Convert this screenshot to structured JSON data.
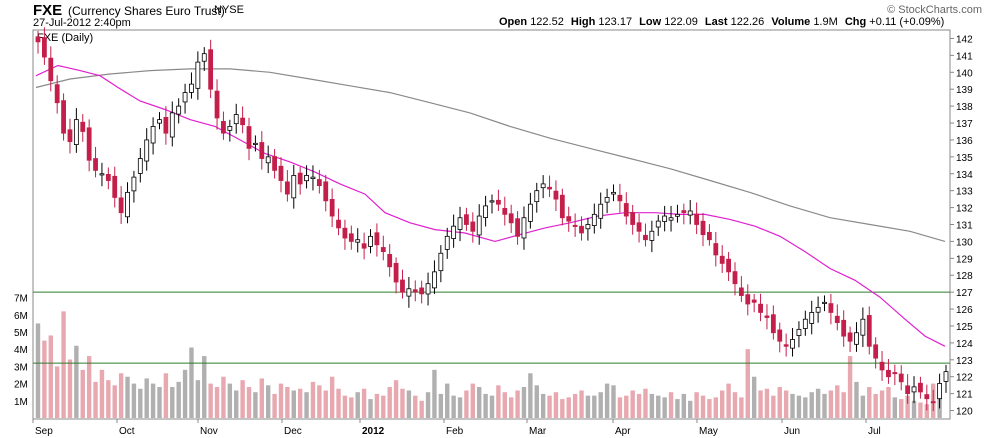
{
  "header": {
    "symbol": "FXE",
    "name": "(Currency Shares Euro Trust)",
    "exchange": "NYSE",
    "timestamp": "27-Jul-2012 2:40pm",
    "brand": "© StockCharts.com",
    "open_label": "Open",
    "open": "122.52",
    "high_label": "High",
    "high": "123.17",
    "low_label": "Low",
    "low": "122.09",
    "last_label": "Last",
    "last": "122.26",
    "volume_label": "Volume",
    "volume": "1.9M",
    "chg_label": "Chg",
    "chg": "+0.11 (+0.09%)"
  },
  "chart_data": {
    "type": "candlestick",
    "title": "FXE (Daily)",
    "ylim": [
      119.5,
      142.5
    ],
    "y_ticks": [
      120,
      121,
      122,
      123,
      124,
      125,
      126,
      127,
      128,
      129,
      130,
      131,
      132,
      133,
      134,
      135,
      136,
      137,
      138,
      139,
      140,
      141,
      142
    ],
    "volume_ticks": [
      "1M",
      "2M",
      "3M",
      "4M",
      "5M",
      "6M",
      "7M"
    ],
    "x_labels": [
      "Sep",
      "Oct",
      "Nov",
      "Dec",
      "2012",
      "Feb",
      "Mar",
      "Apr",
      "May",
      "Jun",
      "Jul"
    ],
    "horizontal_lines": [
      {
        "value": 127,
        "color": "#2e7d2e"
      },
      {
        "value": 122.8,
        "color": "#2e7d2e"
      }
    ],
    "closes": [
      141.8,
      140.9,
      139.5,
      138.2,
      136.4,
      135.9,
      137.2,
      136.5,
      134.8,
      134.2,
      134.0,
      133.6,
      132.6,
      131.7,
      132.9,
      133.8,
      134.9,
      136.0,
      136.8,
      137.2,
      136.4,
      137.6,
      138.0,
      138.8,
      139.3,
      140.6,
      141.1,
      139.0,
      137.3,
      136.4,
      136.8,
      137.5,
      136.9,
      135.5,
      135.8,
      134.9,
      135.0,
      134.2,
      133.6,
      132.8,
      133.9,
      133.4,
      133.9,
      133.8,
      133.3,
      132.4,
      131.5,
      130.8,
      130.2,
      130.0,
      130.1,
      129.6,
      130.3,
      129.8,
      129.4,
      128.5,
      127.6,
      127.0,
      127.2,
      127.0,
      126.9,
      127.5,
      128.2,
      129.3,
      130.3,
      130.9,
      131.4,
      131.0,
      130.6,
      131.5,
      132.1,
      132.4,
      132.2,
      131.6,
      131.1,
      130.3,
      131.4,
      132.2,
      133.0,
      133.4,
      133.1,
      132.5,
      131.4,
      131.2,
      130.9,
      130.5,
      131.0,
      131.6,
      132.2,
      132.6,
      132.9,
      132.4,
      131.5,
      131.0,
      130.6,
      130.1,
      130.6,
      131.2,
      131.5,
      131.4,
      131.6,
      131.7,
      131.8,
      131.0,
      130.4,
      130.1,
      129.2,
      128.7,
      128.2,
      127.5,
      126.8,
      126.3,
      126.4,
      125.8,
      125.5,
      124.6,
      124.1,
      123.8,
      124.2,
      124.8,
      125.4,
      125.8,
      126.1,
      126.4,
      125.8,
      125.2,
      124.4,
      124.1,
      124.6,
      125.4,
      123.8,
      123.1,
      122.4,
      122.0,
      122.2,
      121.7,
      121.0,
      121.4,
      121.1,
      120.7,
      120.5,
      121.6,
      122.3
    ],
    "volumes": [
      5.5,
      4.5,
      4.8,
      3.0,
      6.2,
      3.4,
      4.2,
      2.8,
      3.6,
      2.1,
      2.8,
      2.2,
      1.9,
      2.6,
      2.4,
      2.0,
      1.7,
      2.3,
      2.0,
      1.8,
      2.6,
      1.8,
      2.1,
      2.8,
      4.1,
      2.2,
      3.6,
      2.0,
      1.8,
      2.4,
      2.0,
      1.6,
      2.2,
      1.8,
      1.5,
      2.3,
      1.9,
      1.4,
      2.0,
      1.8,
      1.6,
      1.7,
      1.5,
      2.1,
      1.9,
      1.6,
      2.4,
      1.7,
      1.3,
      1.2,
      1.5,
      1.7,
      1.1,
      1.4,
      1.3,
      1.8,
      2.2,
      1.7,
      1.6,
      1.3,
      1.0,
      1.5,
      2.8,
      1.4,
      2.0,
      1.3,
      1.2,
      1.6,
      2.0,
      1.8,
      1.4,
      1.3,
      1.9,
      1.5,
      1.2,
      1.6,
      1.8,
      2.6,
      1.9,
      1.4,
      1.3,
      1.5,
      1.1,
      1.2,
      1.4,
      1.6,
      1.3,
      1.3,
      1.5,
      2.0,
      1.9,
      1.2,
      1.3,
      1.6,
      1.4,
      1.7,
      1.4,
      1.3,
      1.2,
      1.5,
      1.1,
      1.4,
      1.0,
      1.5,
      1.3,
      1.1,
      1.2,
      1.6,
      2.0,
      1.5,
      1.2,
      4.0,
      2.4,
      1.6,
      1.7,
      1.3,
      1.8,
      1.6,
      1.4,
      1.3,
      1.2,
      1.5,
      1.7,
      1.4,
      1.6,
      1.9,
      1.5,
      3.6,
      2.1,
      1.3,
      1.8,
      1.4,
      1.6,
      1.8,
      1.2,
      1.1,
      1.3,
      1.0,
      0.9,
      0.8,
      2.0,
      1.9
    ],
    "ma50": [
      [
        36,
        139.8
      ],
      [
        58,
        140.4
      ],
      [
        80,
        140.1
      ],
      [
        100,
        139.8
      ],
      [
        118,
        139.1
      ],
      [
        140,
        138.3
      ],
      [
        165,
        137.8
      ],
      [
        190,
        137.2
      ],
      [
        215,
        136.8
      ],
      [
        240,
        136.0
      ],
      [
        265,
        135.2
      ],
      [
        290,
        134.7
      ],
      [
        315,
        134.1
      ],
      [
        340,
        133.4
      ],
      [
        365,
        132.8
      ],
      [
        385,
        131.7
      ],
      [
        410,
        131.1
      ],
      [
        435,
        130.7
      ],
      [
        465,
        130.5
      ],
      [
        495,
        130.0
      ],
      [
        520,
        130.4
      ],
      [
        545,
        130.8
      ],
      [
        570,
        131.1
      ],
      [
        598,
        131.5
      ],
      [
        625,
        131.7
      ],
      [
        655,
        131.7
      ],
      [
        680,
        131.6
      ],
      [
        705,
        131.6
      ],
      [
        730,
        131.3
      ],
      [
        755,
        130.9
      ],
      [
        780,
        130.3
      ],
      [
        805,
        129.4
      ],
      [
        830,
        128.4
      ],
      [
        855,
        127.7
      ],
      [
        880,
        126.7
      ],
      [
        905,
        125.4
      ],
      [
        925,
        124.4
      ],
      [
        945,
        123.8
      ]
    ],
    "ma200": [
      [
        36,
        139.1
      ],
      [
        70,
        139.6
      ],
      [
        110,
        139.9
      ],
      [
        150,
        140.1
      ],
      [
        190,
        140.2
      ],
      [
        230,
        140.2
      ],
      [
        270,
        140.0
      ],
      [
        310,
        139.6
      ],
      [
        350,
        139.2
      ],
      [
        390,
        138.8
      ],
      [
        430,
        138.2
      ],
      [
        470,
        137.6
      ],
      [
        510,
        136.8
      ],
      [
        550,
        136.1
      ],
      [
        590,
        135.5
      ],
      [
        630,
        134.9
      ],
      [
        670,
        134.3
      ],
      [
        710,
        133.6
      ],
      [
        750,
        132.9
      ],
      [
        790,
        132.1
      ],
      [
        830,
        131.4
      ],
      [
        870,
        131.0
      ],
      [
        910,
        130.6
      ],
      [
        945,
        130.0
      ]
    ]
  }
}
